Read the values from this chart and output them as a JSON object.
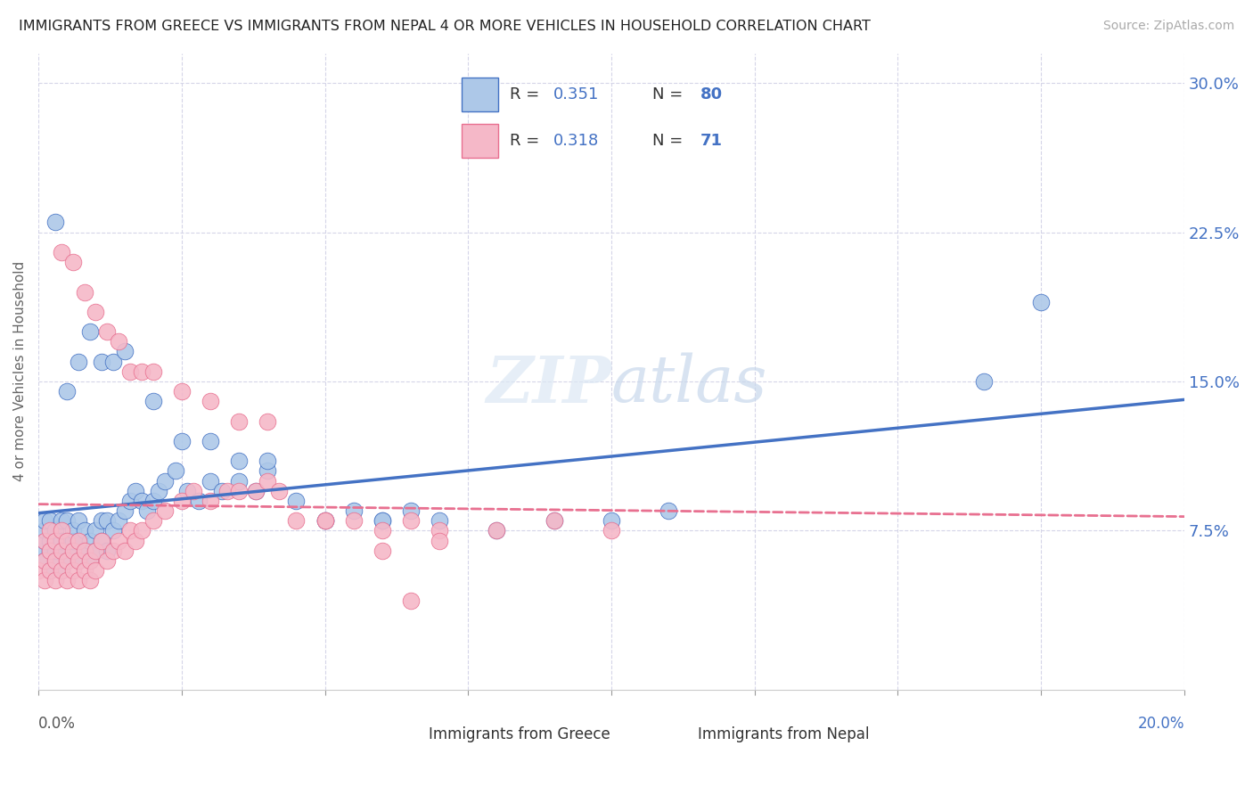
{
  "title": "IMMIGRANTS FROM GREECE VS IMMIGRANTS FROM NEPAL 4 OR MORE VEHICLES IN HOUSEHOLD CORRELATION CHART",
  "source": "Source: ZipAtlas.com",
  "ylabel": "4 or more Vehicles in Household",
  "xlim": [
    0.0,
    0.2
  ],
  "ylim": [
    -0.005,
    0.315
  ],
  "yticks": [
    0.075,
    0.15,
    0.225,
    0.3
  ],
  "ytick_labels": [
    "7.5%",
    "15.0%",
    "22.5%",
    "30.0%"
  ],
  "color_greece": "#adc8e8",
  "color_nepal": "#f5b8c8",
  "color_line_greece": "#4472c4",
  "color_line_nepal": "#e87090",
  "greece_x": [
    0.0,
    0.001,
    0.001,
    0.001,
    0.001,
    0.002,
    0.002,
    0.002,
    0.002,
    0.003,
    0.003,
    0.003,
    0.003,
    0.004,
    0.004,
    0.004,
    0.004,
    0.005,
    0.005,
    0.005,
    0.006,
    0.006,
    0.006,
    0.007,
    0.007,
    0.007,
    0.008,
    0.008,
    0.009,
    0.009,
    0.01,
    0.01,
    0.011,
    0.011,
    0.012,
    0.012,
    0.013,
    0.014,
    0.015,
    0.016,
    0.017,
    0.018,
    0.019,
    0.02,
    0.021,
    0.022,
    0.024,
    0.026,
    0.028,
    0.03,
    0.032,
    0.035,
    0.038,
    0.04,
    0.045,
    0.05,
    0.055,
    0.06,
    0.065,
    0.07,
    0.08,
    0.09,
    0.1,
    0.11,
    0.003,
    0.005,
    0.007,
    0.009,
    0.011,
    0.013,
    0.015,
    0.02,
    0.025,
    0.03,
    0.035,
    0.04,
    0.05,
    0.06,
    0.165,
    0.175
  ],
  "greece_y": [
    0.065,
    0.06,
    0.07,
    0.075,
    0.08,
    0.055,
    0.065,
    0.07,
    0.08,
    0.06,
    0.065,
    0.07,
    0.075,
    0.055,
    0.065,
    0.07,
    0.08,
    0.06,
    0.07,
    0.08,
    0.065,
    0.07,
    0.075,
    0.06,
    0.07,
    0.08,
    0.065,
    0.075,
    0.06,
    0.07,
    0.065,
    0.075,
    0.07,
    0.08,
    0.065,
    0.08,
    0.075,
    0.08,
    0.085,
    0.09,
    0.095,
    0.09,
    0.085,
    0.09,
    0.095,
    0.1,
    0.105,
    0.095,
    0.09,
    0.1,
    0.095,
    0.1,
    0.095,
    0.105,
    0.09,
    0.08,
    0.085,
    0.08,
    0.085,
    0.08,
    0.075,
    0.08,
    0.08,
    0.085,
    0.23,
    0.145,
    0.16,
    0.175,
    0.16,
    0.16,
    0.165,
    0.14,
    0.12,
    0.12,
    0.11,
    0.11,
    0.08,
    0.08,
    0.15,
    0.19
  ],
  "nepal_x": [
    0.0,
    0.001,
    0.001,
    0.001,
    0.002,
    0.002,
    0.002,
    0.003,
    0.003,
    0.003,
    0.004,
    0.004,
    0.004,
    0.005,
    0.005,
    0.005,
    0.006,
    0.006,
    0.007,
    0.007,
    0.007,
    0.008,
    0.008,
    0.009,
    0.009,
    0.01,
    0.01,
    0.011,
    0.012,
    0.013,
    0.014,
    0.015,
    0.016,
    0.017,
    0.018,
    0.02,
    0.022,
    0.025,
    0.027,
    0.03,
    0.033,
    0.035,
    0.038,
    0.04,
    0.042,
    0.045,
    0.05,
    0.055,
    0.06,
    0.065,
    0.07,
    0.004,
    0.006,
    0.008,
    0.01,
    0.012,
    0.014,
    0.016,
    0.018,
    0.02,
    0.025,
    0.03,
    0.035,
    0.04,
    0.05,
    0.06,
    0.065,
    0.07,
    0.08,
    0.09,
    0.1
  ],
  "nepal_y": [
    0.055,
    0.05,
    0.06,
    0.07,
    0.055,
    0.065,
    0.075,
    0.05,
    0.06,
    0.07,
    0.055,
    0.065,
    0.075,
    0.05,
    0.06,
    0.07,
    0.055,
    0.065,
    0.05,
    0.06,
    0.07,
    0.055,
    0.065,
    0.05,
    0.06,
    0.055,
    0.065,
    0.07,
    0.06,
    0.065,
    0.07,
    0.065,
    0.075,
    0.07,
    0.075,
    0.08,
    0.085,
    0.09,
    0.095,
    0.09,
    0.095,
    0.095,
    0.095,
    0.1,
    0.095,
    0.08,
    0.08,
    0.08,
    0.075,
    0.08,
    0.075,
    0.215,
    0.21,
    0.195,
    0.185,
    0.175,
    0.17,
    0.155,
    0.155,
    0.155,
    0.145,
    0.14,
    0.13,
    0.13,
    0.08,
    0.065,
    0.04,
    0.07,
    0.075,
    0.08,
    0.075
  ]
}
